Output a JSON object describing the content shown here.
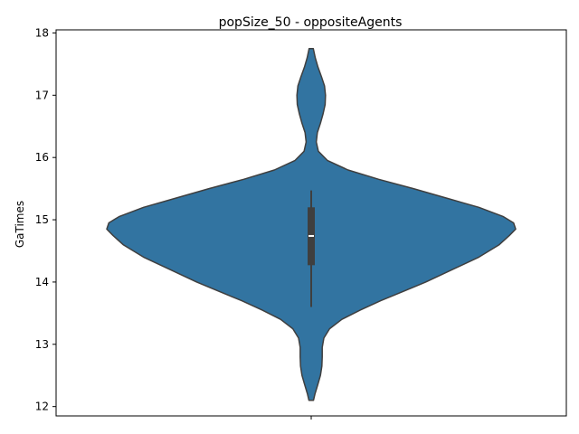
{
  "chart_data": {
    "type": "violin",
    "title": "popSize_50 - oppositeAgents",
    "xlabel": "",
    "ylabel": "GaTimes",
    "ylim": [
      11.85,
      18.05
    ],
    "yticks": [
      12,
      13,
      14,
      15,
      16,
      17,
      18
    ],
    "grid": false,
    "legend": false,
    "color": "#3274a1",
    "edge_color": "#3f3f3f",
    "violin": {
      "min": 12.1,
      "max": 17.75,
      "box": {
        "q1": 14.27,
        "median": 14.74,
        "q3": 15.2,
        "whisker_low": 13.6,
        "whisker_high": 15.47
      },
      "density": [
        [
          12.1,
          0.011
        ],
        [
          12.2,
          0.018
        ],
        [
          12.35,
          0.032
        ],
        [
          12.5,
          0.045
        ],
        [
          12.65,
          0.052
        ],
        [
          12.8,
          0.054
        ],
        [
          12.95,
          0.054
        ],
        [
          13.1,
          0.062
        ],
        [
          13.25,
          0.09
        ],
        [
          13.4,
          0.15
        ],
        [
          13.55,
          0.24
        ],
        [
          13.7,
          0.34
        ],
        [
          13.85,
          0.45
        ],
        [
          14.0,
          0.56
        ],
        [
          14.2,
          0.69
        ],
        [
          14.4,
          0.82
        ],
        [
          14.6,
          0.92
        ],
        [
          14.75,
          0.97
        ],
        [
          14.85,
          1.0
        ],
        [
          14.95,
          0.99
        ],
        [
          15.05,
          0.94
        ],
        [
          15.2,
          0.82
        ],
        [
          15.35,
          0.66
        ],
        [
          15.5,
          0.5
        ],
        [
          15.65,
          0.33
        ],
        [
          15.8,
          0.18
        ],
        [
          15.95,
          0.08
        ],
        [
          16.1,
          0.035
        ],
        [
          16.25,
          0.025
        ],
        [
          16.4,
          0.03
        ],
        [
          16.55,
          0.045
        ],
        [
          16.7,
          0.058
        ],
        [
          16.85,
          0.068
        ],
        [
          17.0,
          0.07
        ],
        [
          17.15,
          0.065
        ],
        [
          17.3,
          0.05
        ],
        [
          17.45,
          0.033
        ],
        [
          17.6,
          0.02
        ],
        [
          17.75,
          0.01
        ]
      ]
    }
  }
}
